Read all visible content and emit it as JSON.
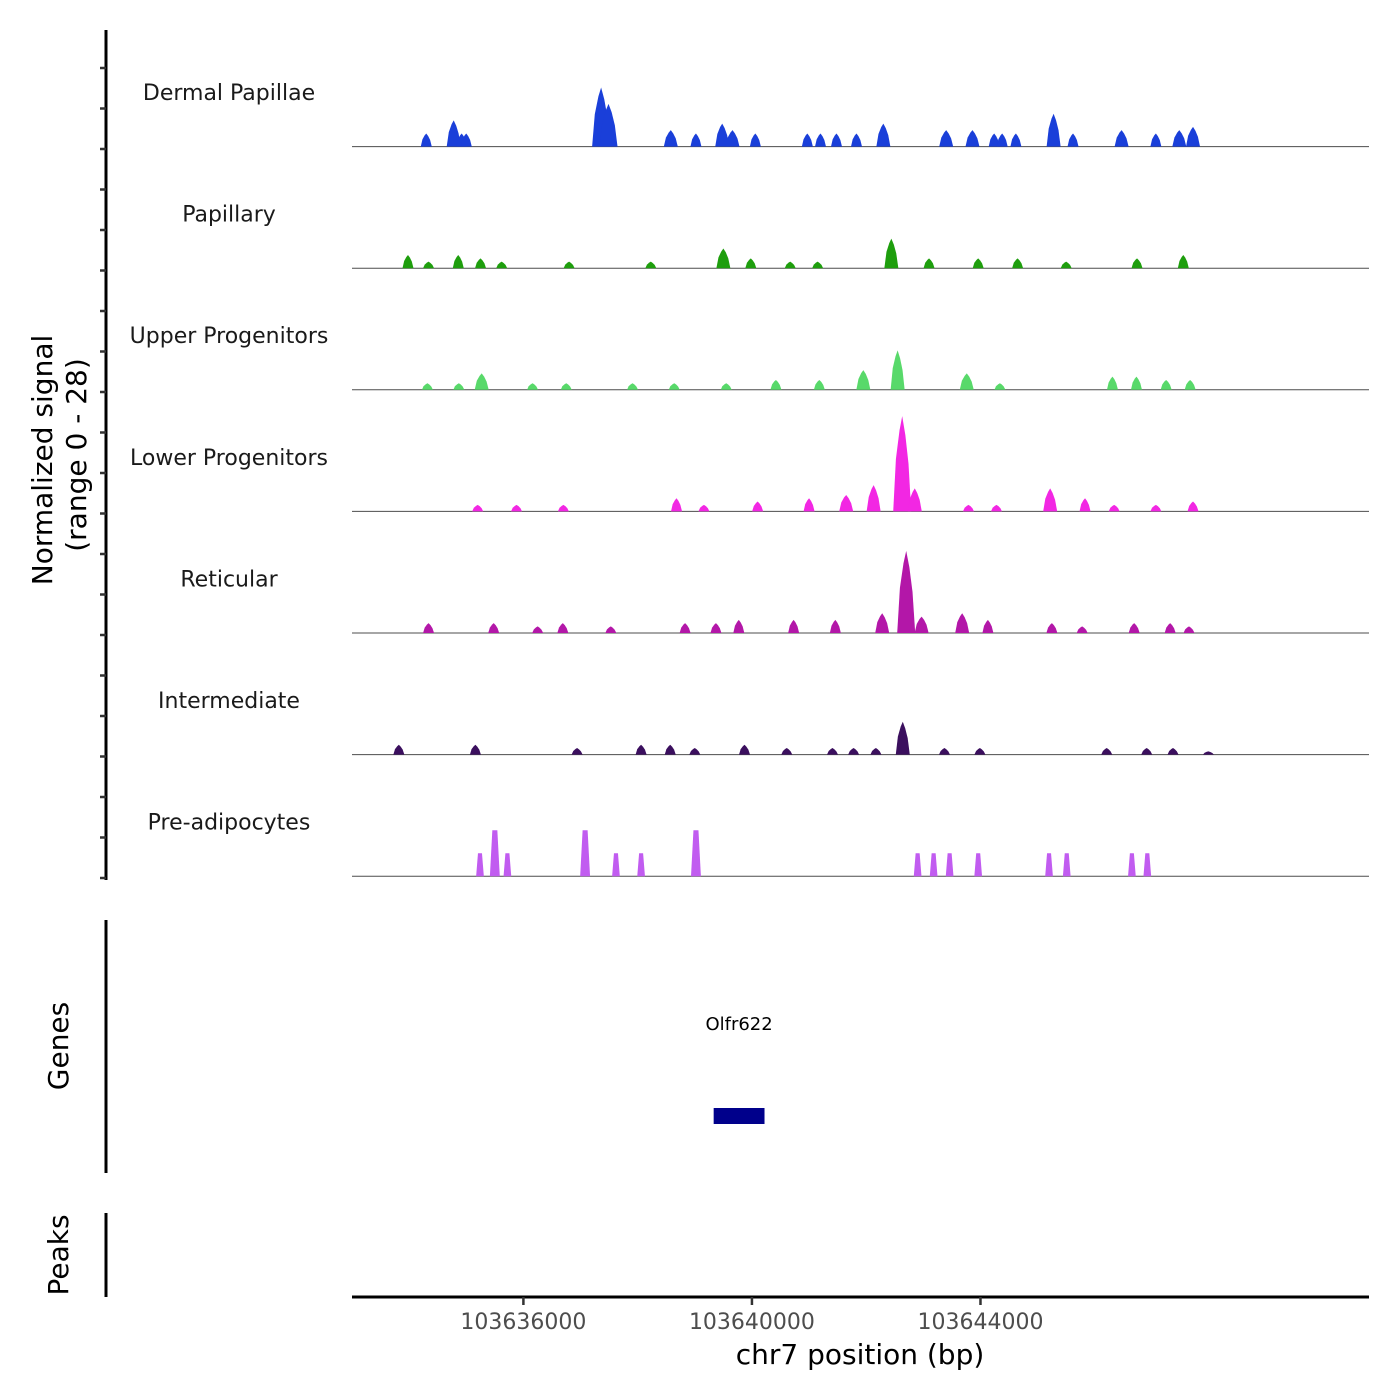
{
  "chart_data": {
    "type": "area",
    "title": "",
    "ylabel_line1": "Normalized signal",
    "ylabel_line2": "(range 0 - 28)",
    "y_range": [
      0,
      28
    ],
    "xlabel": "chr7 position (bp)",
    "x_range": [
      103633000,
      103650800
    ],
    "x_ticks": [
      103636000,
      103640000,
      103644000
    ],
    "x_tick_labels": [
      "103636000",
      "103640000",
      "103644000"
    ],
    "series": [
      {
        "name": "Dermal Papillae",
        "color": "#1a3fd9",
        "peaks": [
          [
            103634300,
            4
          ],
          [
            103634780,
            8
          ],
          [
            103634920,
            4
          ],
          [
            103635000,
            4
          ],
          [
            103637360,
            18
          ],
          [
            103637490,
            13
          ],
          [
            103638580,
            5
          ],
          [
            103639020,
            4
          ],
          [
            103639480,
            7
          ],
          [
            103639660,
            5
          ],
          [
            103640060,
            4
          ],
          [
            103640970,
            4
          ],
          [
            103641200,
            4
          ],
          [
            103641480,
            4
          ],
          [
            103641830,
            4
          ],
          [
            103642300,
            7
          ],
          [
            103643400,
            5
          ],
          [
            103643860,
            5
          ],
          [
            103644240,
            4
          ],
          [
            103644380,
            4
          ],
          [
            103644620,
            4
          ],
          [
            103645280,
            10
          ],
          [
            103645620,
            4
          ],
          [
            103646470,
            5
          ],
          [
            103647070,
            4
          ],
          [
            103647480,
            5
          ],
          [
            103647720,
            6
          ]
        ]
      },
      {
        "name": "Papillary",
        "color": "#1e9e0d",
        "peaks": [
          [
            103633980,
            4
          ],
          [
            103634340,
            2
          ],
          [
            103634860,
            4
          ],
          [
            103635250,
            3
          ],
          [
            103635620,
            2
          ],
          [
            103636800,
            2
          ],
          [
            103638230,
            2
          ],
          [
            103639500,
            6
          ],
          [
            103639980,
            3
          ],
          [
            103640670,
            2
          ],
          [
            103641150,
            2
          ],
          [
            103642440,
            9
          ],
          [
            103643100,
            3
          ],
          [
            103643960,
            3
          ],
          [
            103644650,
            3
          ],
          [
            103645500,
            2
          ],
          [
            103646740,
            3
          ],
          [
            103647550,
            4
          ]
        ]
      },
      {
        "name": "Upper Progenitors",
        "color": "#58d96a",
        "peaks": [
          [
            103634320,
            2
          ],
          [
            103634870,
            2
          ],
          [
            103635270,
            5
          ],
          [
            103636160,
            2
          ],
          [
            103636750,
            2
          ],
          [
            103637910,
            2
          ],
          [
            103638640,
            2
          ],
          [
            103639550,
            2
          ],
          [
            103640420,
            3
          ],
          [
            103641180,
            3
          ],
          [
            103641950,
            6
          ],
          [
            103642550,
            12
          ],
          [
            103643760,
            5
          ],
          [
            103644340,
            2
          ],
          [
            103646310,
            4
          ],
          [
            103646730,
            4
          ],
          [
            103647250,
            3
          ],
          [
            103647670,
            3
          ]
        ]
      },
      {
        "name": "Lower Progenitors",
        "color": "#f227e3",
        "peaks": [
          [
            103635200,
            2
          ],
          [
            103635880,
            2
          ],
          [
            103636700,
            2
          ],
          [
            103638680,
            4
          ],
          [
            103639160,
            2
          ],
          [
            103640100,
            3
          ],
          [
            103641000,
            4
          ],
          [
            103641650,
            5
          ],
          [
            103642130,
            8
          ],
          [
            103642630,
            29
          ],
          [
            103642850,
            7
          ],
          [
            103643790,
            2
          ],
          [
            103644280,
            2
          ],
          [
            103645220,
            7
          ],
          [
            103645830,
            4
          ],
          [
            103646340,
            2
          ],
          [
            103647070,
            2
          ],
          [
            103647720,
            3
          ]
        ]
      },
      {
        "name": "Reticular",
        "color": "#b317a8",
        "peaks": [
          [
            103634340,
            3
          ],
          [
            103635480,
            3
          ],
          [
            103636250,
            2
          ],
          [
            103636690,
            3
          ],
          [
            103637530,
            2
          ],
          [
            103638830,
            3
          ],
          [
            103639370,
            3
          ],
          [
            103639770,
            4
          ],
          [
            103640730,
            4
          ],
          [
            103641460,
            4
          ],
          [
            103642280,
            6
          ],
          [
            103642700,
            25
          ],
          [
            103642970,
            5
          ],
          [
            103643680,
            6
          ],
          [
            103644130,
            4
          ],
          [
            103645250,
            3
          ],
          [
            103645780,
            2
          ],
          [
            103646690,
            3
          ],
          [
            103647320,
            3
          ],
          [
            103647650,
            2
          ]
        ]
      },
      {
        "name": "Intermediate",
        "color": "#3b0f5e",
        "peaks": [
          [
            103633820,
            3
          ],
          [
            103635160,
            3
          ],
          [
            103636940,
            2
          ],
          [
            103638060,
            3
          ],
          [
            103638570,
            3
          ],
          [
            103639000,
            2
          ],
          [
            103639870,
            3
          ],
          [
            103640610,
            2
          ],
          [
            103641410,
            2
          ],
          [
            103641780,
            2
          ],
          [
            103642170,
            2
          ],
          [
            103642640,
            10
          ],
          [
            103643370,
            2
          ],
          [
            103643990,
            2
          ],
          [
            103646210,
            2
          ],
          [
            103646910,
            2
          ],
          [
            103647370,
            2
          ],
          [
            103647990,
            1
          ]
        ]
      },
      {
        "name": "Pre-adipocytes",
        "color": "#c15cf0",
        "peaks": [
          [
            103635240,
            7
          ],
          [
            103635500,
            14
          ],
          [
            103635720,
            7
          ],
          [
            103637080,
            14
          ],
          [
            103637620,
            7
          ],
          [
            103638060,
            7
          ],
          [
            103639020,
            14
          ],
          [
            103642900,
            7
          ],
          [
            103643180,
            7
          ],
          [
            103643460,
            7
          ],
          [
            103643960,
            7
          ],
          [
            103645200,
            7
          ],
          [
            103645510,
            7
          ],
          [
            103646650,
            7
          ],
          [
            103646920,
            7
          ]
        ]
      }
    ],
    "genes_label": "Genes",
    "genes": [
      {
        "name": "Olfr622",
        "start": 103639330,
        "end": 103640220,
        "color": "#00008b"
      }
    ],
    "peaks_label": "Peaks"
  }
}
